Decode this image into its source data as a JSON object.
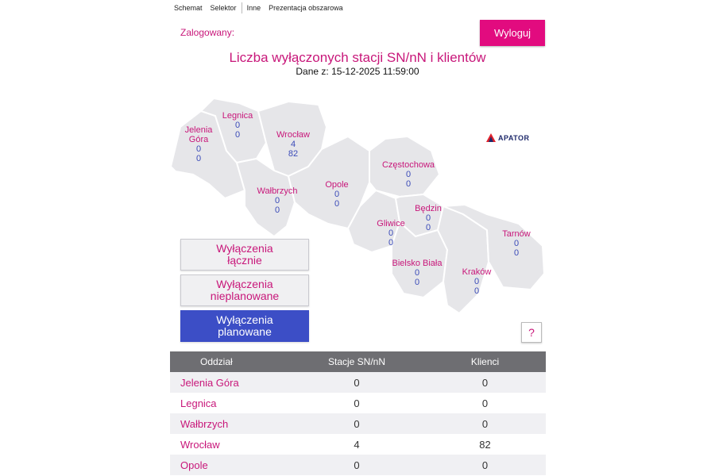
{
  "nav": [
    "Schemat",
    "Selektor",
    "Inne",
    "Prezentacja obszarowa"
  ],
  "logged_label": "Zalogowany:",
  "logout_label": "Wyloguj",
  "title": "Liczba wyłączonych stacji SN/nN i klientów",
  "subtitle": "Dane z: 15-12-2025 11:59:00",
  "brand": "APATOR",
  "colors": {
    "accent": "#e20b7f",
    "label": "#c8177a",
    "value": "#3b4bb8",
    "active_button": "#3c4ec6",
    "header": "#6e6e72"
  },
  "regions": [
    {
      "name": "Jelenia Góra",
      "line1": "Jelenia",
      "line2": "Góra",
      "stations": "0",
      "clients": "0"
    },
    {
      "name": "Legnica",
      "stations": "0",
      "clients": "0"
    },
    {
      "name": "Wrocław",
      "stations": "4",
      "clients": "82"
    },
    {
      "name": "Wałbrzych",
      "stations": "0",
      "clients": "0"
    },
    {
      "name": "Opole",
      "stations": "0",
      "clients": "0"
    },
    {
      "name": "Częstochowa",
      "stations": "0",
      "clients": "0"
    },
    {
      "name": "Gliwice",
      "stations": "0",
      "clients": "0"
    },
    {
      "name": "Będzin",
      "stations": "0",
      "clients": "0"
    },
    {
      "name": "Bielsko Biała",
      "stations": "0",
      "clients": "0"
    },
    {
      "name": "Kraków",
      "stations": "0",
      "clients": "0"
    },
    {
      "name": "Tarnów",
      "stations": "0",
      "clients": "0"
    }
  ],
  "buttons": {
    "total": [
      "Wyłączenia",
      "łącznie"
    ],
    "unplanned": [
      "Wyłączenia",
      "nieplanowane"
    ],
    "planned": [
      "Wyłączenia",
      "planowane"
    ]
  },
  "help_label": "?",
  "table": {
    "headers": [
      "Oddział",
      "Stacje SN/nN",
      "Klienci"
    ],
    "rows": [
      [
        "Jelenia Góra",
        "0",
        "0"
      ],
      [
        "Legnica",
        "0",
        "0"
      ],
      [
        "Wałbrzych",
        "0",
        "0"
      ],
      [
        "Wrocław",
        "4",
        "82"
      ],
      [
        "Opole",
        "0",
        "0"
      ]
    ]
  }
}
